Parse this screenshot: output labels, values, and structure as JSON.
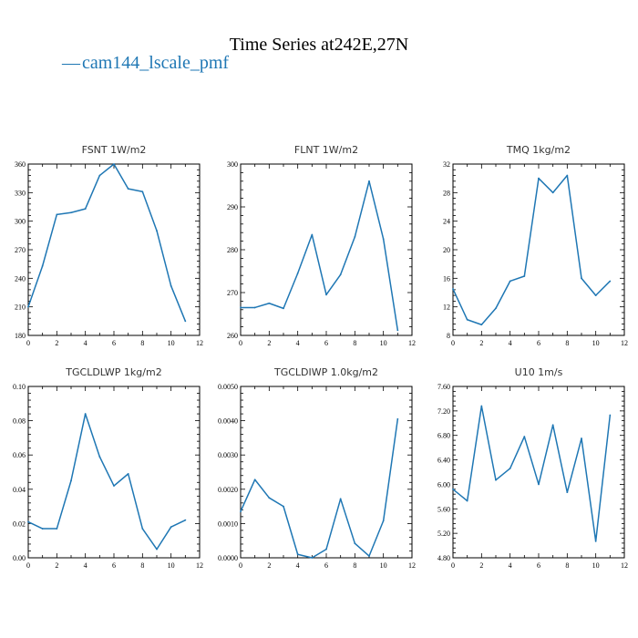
{
  "title": "Time Series at242E,27N",
  "legend": {
    "dash": "—",
    "label": "cam144_lscale_pmf",
    "color": "#1f77b4"
  },
  "chart_data": [
    {
      "type": "line",
      "title": "FSNT   1W/m2",
      "x": [
        0,
        1,
        2,
        3,
        4,
        5,
        6,
        7,
        8,
        9,
        10,
        11
      ],
      "series": [
        {
          "values": [
            210,
            253,
            307,
            309,
            313,
            348,
            360,
            334,
            331,
            290,
            232,
            195
          ],
          "color": "#1f77b4"
        }
      ],
      "xlim": [
        0,
        12
      ],
      "ylim": [
        180,
        360
      ],
      "xticks": [
        "0",
        "2",
        "4",
        "6",
        "8",
        "10",
        "12"
      ],
      "yticks": [
        "180",
        "210",
        "240",
        "270",
        "300",
        "330",
        "360"
      ]
    },
    {
      "type": "line",
      "title": "FLNT   1W/m2",
      "x": [
        0,
        1,
        2,
        3,
        4,
        5,
        6,
        7,
        8,
        9,
        10,
        11
      ],
      "series": [
        {
          "values": [
            266.5,
            266.5,
            267.5,
            266.3,
            274.5,
            283.5,
            269.5,
            274.2,
            283.0,
            296.0,
            282.5,
            261.2
          ],
          "color": "#1f77b4"
        }
      ],
      "xlim": [
        0,
        12
      ],
      "ylim": [
        260,
        300
      ],
      "xticks": [
        "0",
        "2",
        "4",
        "6",
        "8",
        "10",
        "12"
      ],
      "yticks": [
        "260",
        "270",
        "280",
        "290",
        "300"
      ]
    },
    {
      "type": "line",
      "title": "TMQ   1kg/m2",
      "x": [
        0,
        1,
        2,
        3,
        4,
        5,
        6,
        7,
        8,
        9,
        10,
        11
      ],
      "series": [
        {
          "values": [
            14.5,
            10.2,
            9.5,
            11.8,
            15.6,
            16.3,
            30.0,
            28.0,
            30.4,
            16.0,
            13.6,
            15.6
          ],
          "color": "#1f77b4"
        }
      ],
      "xlim": [
        0,
        12
      ],
      "ylim": [
        8,
        32
      ],
      "xticks": [
        "0",
        "2",
        "4",
        "6",
        "8",
        "10",
        "12"
      ],
      "yticks": [
        "8",
        "12",
        "16",
        "20",
        "24",
        "28",
        "32"
      ]
    },
    {
      "type": "line",
      "title": "TGCLDLWP   1kg/m2",
      "x": [
        0,
        1,
        2,
        3,
        4,
        5,
        6,
        7,
        8,
        9,
        10,
        11
      ],
      "series": [
        {
          "values": [
            0.021,
            0.017,
            0.017,
            0.045,
            0.084,
            0.059,
            0.042,
            0.049,
            0.017,
            0.005,
            0.018,
            0.022
          ],
          "color": "#1f77b4"
        }
      ],
      "xlim": [
        0,
        12
      ],
      "ylim": [
        0,
        0.1
      ],
      "xticks": [
        "0",
        "2",
        "4",
        "6",
        "8",
        "10",
        "12"
      ],
      "yticks": [
        "0.00",
        "0.02",
        "0.04",
        "0.06",
        "0.08",
        "0.10"
      ]
    },
    {
      "type": "line",
      "title": "TGCLDIWP   1.0kg/m2",
      "x": [
        0,
        1,
        2,
        3,
        4,
        5,
        6,
        7,
        8,
        9,
        10,
        11
      ],
      "series": [
        {
          "values": [
            0.00135,
            0.00228,
            0.00175,
            0.0015,
            0.0001,
            0.0,
            0.00025,
            0.00172,
            0.00042,
            5e-05,
            0.00108,
            0.00405
          ],
          "color": "#1f77b4"
        }
      ],
      "xlim": [
        0,
        12
      ],
      "ylim": [
        0,
        0.005
      ],
      "xticks": [
        "0",
        "2",
        "4",
        "6",
        "8",
        "10",
        "12"
      ],
      "yticks": [
        "0.0000",
        "0.0010",
        "0.0020",
        "0.0030",
        "0.0040",
        "0.0050"
      ]
    },
    {
      "type": "line",
      "title": "U10   1m/s",
      "x": [
        0,
        1,
        2,
        3,
        4,
        5,
        6,
        7,
        8,
        9,
        10,
        11
      ],
      "series": [
        {
          "values": [
            5.92,
            5.73,
            7.28,
            6.07,
            6.26,
            6.78,
            6.0,
            6.97,
            5.87,
            6.75,
            5.07,
            7.13
          ],
          "color": "#1f77b4"
        }
      ],
      "xlim": [
        0,
        12
      ],
      "ylim": [
        4.8,
        7.6
      ],
      "xticks": [
        "0",
        "2",
        "4",
        "6",
        "8",
        "10",
        "12"
      ],
      "yticks": [
        "4.80",
        "5.20",
        "5.60",
        "6.00",
        "6.40",
        "6.80",
        "7.20",
        "7.60"
      ]
    }
  ]
}
